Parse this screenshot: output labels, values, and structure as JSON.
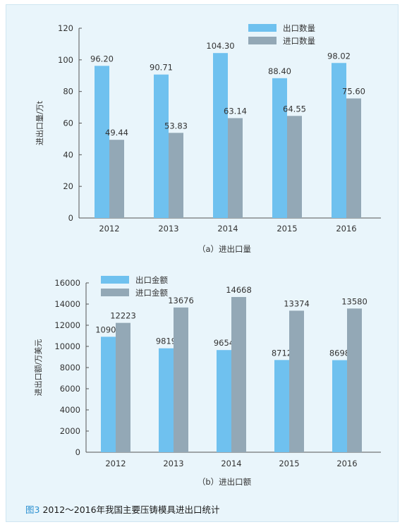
{
  "figure_caption": {
    "number": "图3",
    "text": "2012～2016年我国主要压铸模具进出口统计"
  },
  "colors": {
    "export": "#6fc1ef",
    "import": "#93a8b6",
    "axis": "#555555",
    "background": "#e9f5fb",
    "caption_number": "#2a8fd0"
  },
  "chart_data": [
    {
      "type": "bar",
      "subtitle": "（a）进出口量",
      "ylabel": "进出口量/万t",
      "xlabel": "",
      "ylim": [
        0,
        120
      ],
      "yticks": [
        0,
        20,
        40,
        60,
        80,
        100,
        120
      ],
      "categories": [
        "2012",
        "2013",
        "2014",
        "2015",
        "2016"
      ],
      "legend_position": "top-right",
      "grid": false,
      "series": [
        {
          "name": "出口数量",
          "values": [
            96.2,
            90.71,
            104.3,
            88.4,
            98.02
          ],
          "labels": [
            "96.20",
            "90.71",
            "104.30",
            "88.40",
            "98.02"
          ]
        },
        {
          "name": "进口数量",
          "values": [
            49.44,
            53.83,
            63.14,
            64.55,
            75.6
          ],
          "labels": [
            "49.44",
            "53.83",
            "63.14",
            "64.55",
            "75.60"
          ]
        }
      ]
    },
    {
      "type": "bar",
      "subtitle": "（b）进出口额",
      "ylabel": "进出口额/万美元",
      "xlabel": "",
      "ylim": [
        0,
        16000
      ],
      "yticks": [
        0,
        2000,
        4000,
        6000,
        8000,
        10000,
        12000,
        14000,
        16000
      ],
      "categories": [
        "2012",
        "2013",
        "2014",
        "2015",
        "2016"
      ],
      "legend_position": "top-left",
      "grid": false,
      "series": [
        {
          "name": "出口金额",
          "values": [
            10909,
            9819,
            9654,
            8712,
            8698
          ],
          "labels": [
            "10909",
            "9819",
            "9654",
            "8712",
            "8698"
          ]
        },
        {
          "name": "进口金额",
          "values": [
            12223,
            13676,
            14668,
            13374,
            13580
          ],
          "labels": [
            "12223",
            "13676",
            "14668",
            "13374",
            "13580"
          ]
        }
      ]
    }
  ]
}
